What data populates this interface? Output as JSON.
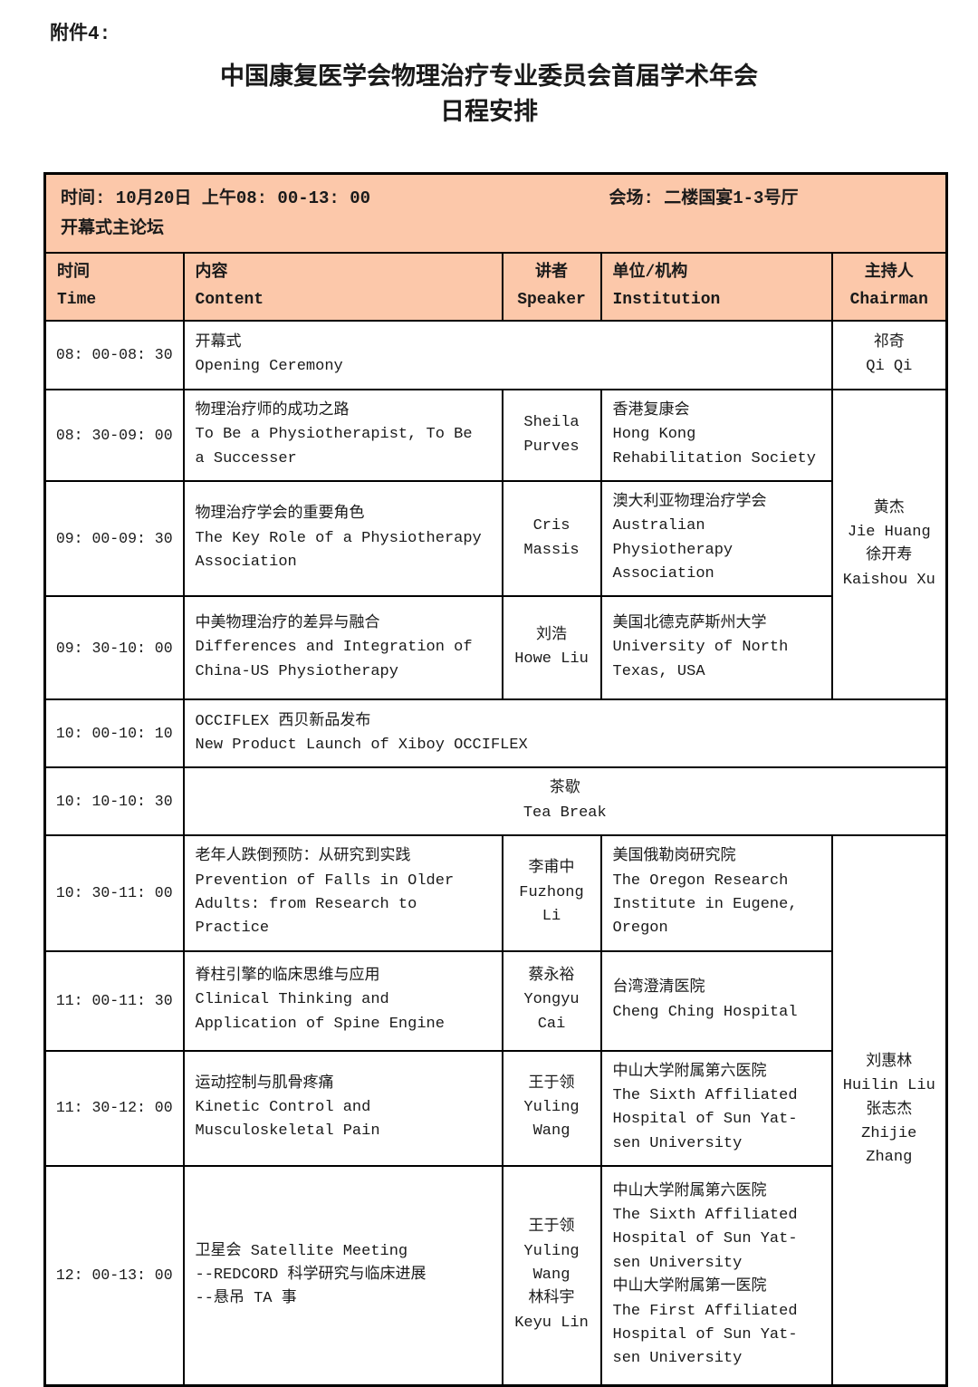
{
  "page": {
    "attachment_label": "附件4:",
    "title_line1": "中国康复医学会物理治疗专业委员会首届学术年会",
    "title_line2": "日程安排"
  },
  "colors": {
    "header_bg": "#FCC8AA",
    "border": "#000000",
    "text": "#1a1a1a"
  },
  "banner": {
    "time_info": "时间: 10月20日 上午08: 00-13: 00",
    "venue_info": "会场: 二楼国宴1-3号厅",
    "session_name": "开幕式主论坛"
  },
  "columns": {
    "time": {
      "zh": "时间",
      "en": "Time"
    },
    "content": {
      "zh": "内容",
      "en": "Content"
    },
    "speaker": {
      "zh": "讲者",
      "en": "Speaker"
    },
    "institution": {
      "zh": "单位/机构",
      "en": "Institution"
    },
    "chairman": {
      "zh": "主持人",
      "en": "Chairman"
    }
  },
  "rows": [
    {
      "time": "08: 00-08: 30",
      "content": "开幕式\nOpening Ceremony",
      "chairman": "祁奇\nQi Qi"
    },
    {
      "time": "08: 30-09: 00",
      "content": "物理治疗师的成功之路\nTo Be a Physiotherapist, To Be a Successer",
      "speaker": "Sheila\nPurves",
      "institution": "香港复康会\nHong Kong\nRehabilitation Society",
      "chairman": "黄杰\nJie Huang\n徐开寿\nKaishou Xu"
    },
    {
      "time": "09: 00-09: 30",
      "content": "物理治疗学会的重要角色\nThe Key Role of a Physiotherapy Association",
      "speaker": "Cris\nMassis",
      "institution": "澳大利亚物理治疗学会\nAustralian\nPhysiotherapy\nAssociation"
    },
    {
      "time": "09: 30-10: 00",
      "content": "中美物理治疗的差异与融合\nDifferences and Integration of China-US Physiotherapy",
      "speaker": "刘浩\nHowe Liu",
      "institution": "美国北德克萨斯州大学\nUniversity of North\nTexas, USA"
    },
    {
      "time": "10: 00-10: 10",
      "content": "OCCIFLEX 西贝新品发布\nNew Product Launch of Xiboy OCCIFLEX"
    },
    {
      "time": "10: 10-10: 30",
      "content": "茶歇\nTea Break"
    },
    {
      "time": "10: 30-11: 00",
      "content": "老年人跌倒预防：从研究到实践\nPrevention of Falls in Older Adults: from Research to Practice",
      "speaker": "李甫中\nFuzhong\nLi",
      "institution": "美国俄勒岗研究院\nThe Oregon Research\nInstitute in Eugene,\nOregon",
      "chairman": "刘惠林\nHuilin Liu\n张志杰\nZhijie Zhang"
    },
    {
      "time": "11: 00-11: 30",
      "content": "脊柱引擎的临床思维与应用\nClinical Thinking and Application of Spine Engine",
      "speaker": "蔡永裕\nYongyu\nCai",
      "institution": "台湾澄清医院\nCheng Ching Hospital"
    },
    {
      "time": "11: 30-12: 00",
      "content": "运动控制与肌骨疼痛\nKinetic Control and Musculoskeletal Pain",
      "speaker": "王于领\nYuling\nWang",
      "institution": "中山大学附属第六医院\nThe Sixth Affiliated\nHospital of Sun Yat-\nsen University"
    },
    {
      "time": "12: 00-13: 00",
      "content": "卫星会 Satellite Meeting\n--REDCORD 科学研究与临床进展\n--悬吊 TA 事",
      "speaker": "王于领\nYuling\nWang\n林科宇\nKeyu Lin",
      "institution": "中山大学附属第六医院\nThe Sixth Affiliated\nHospital of Sun Yat-\nsen University\n中山大学附属第一医院\nThe First Affiliated\nHospital of Sun Yat-\nsen University"
    }
  ]
}
